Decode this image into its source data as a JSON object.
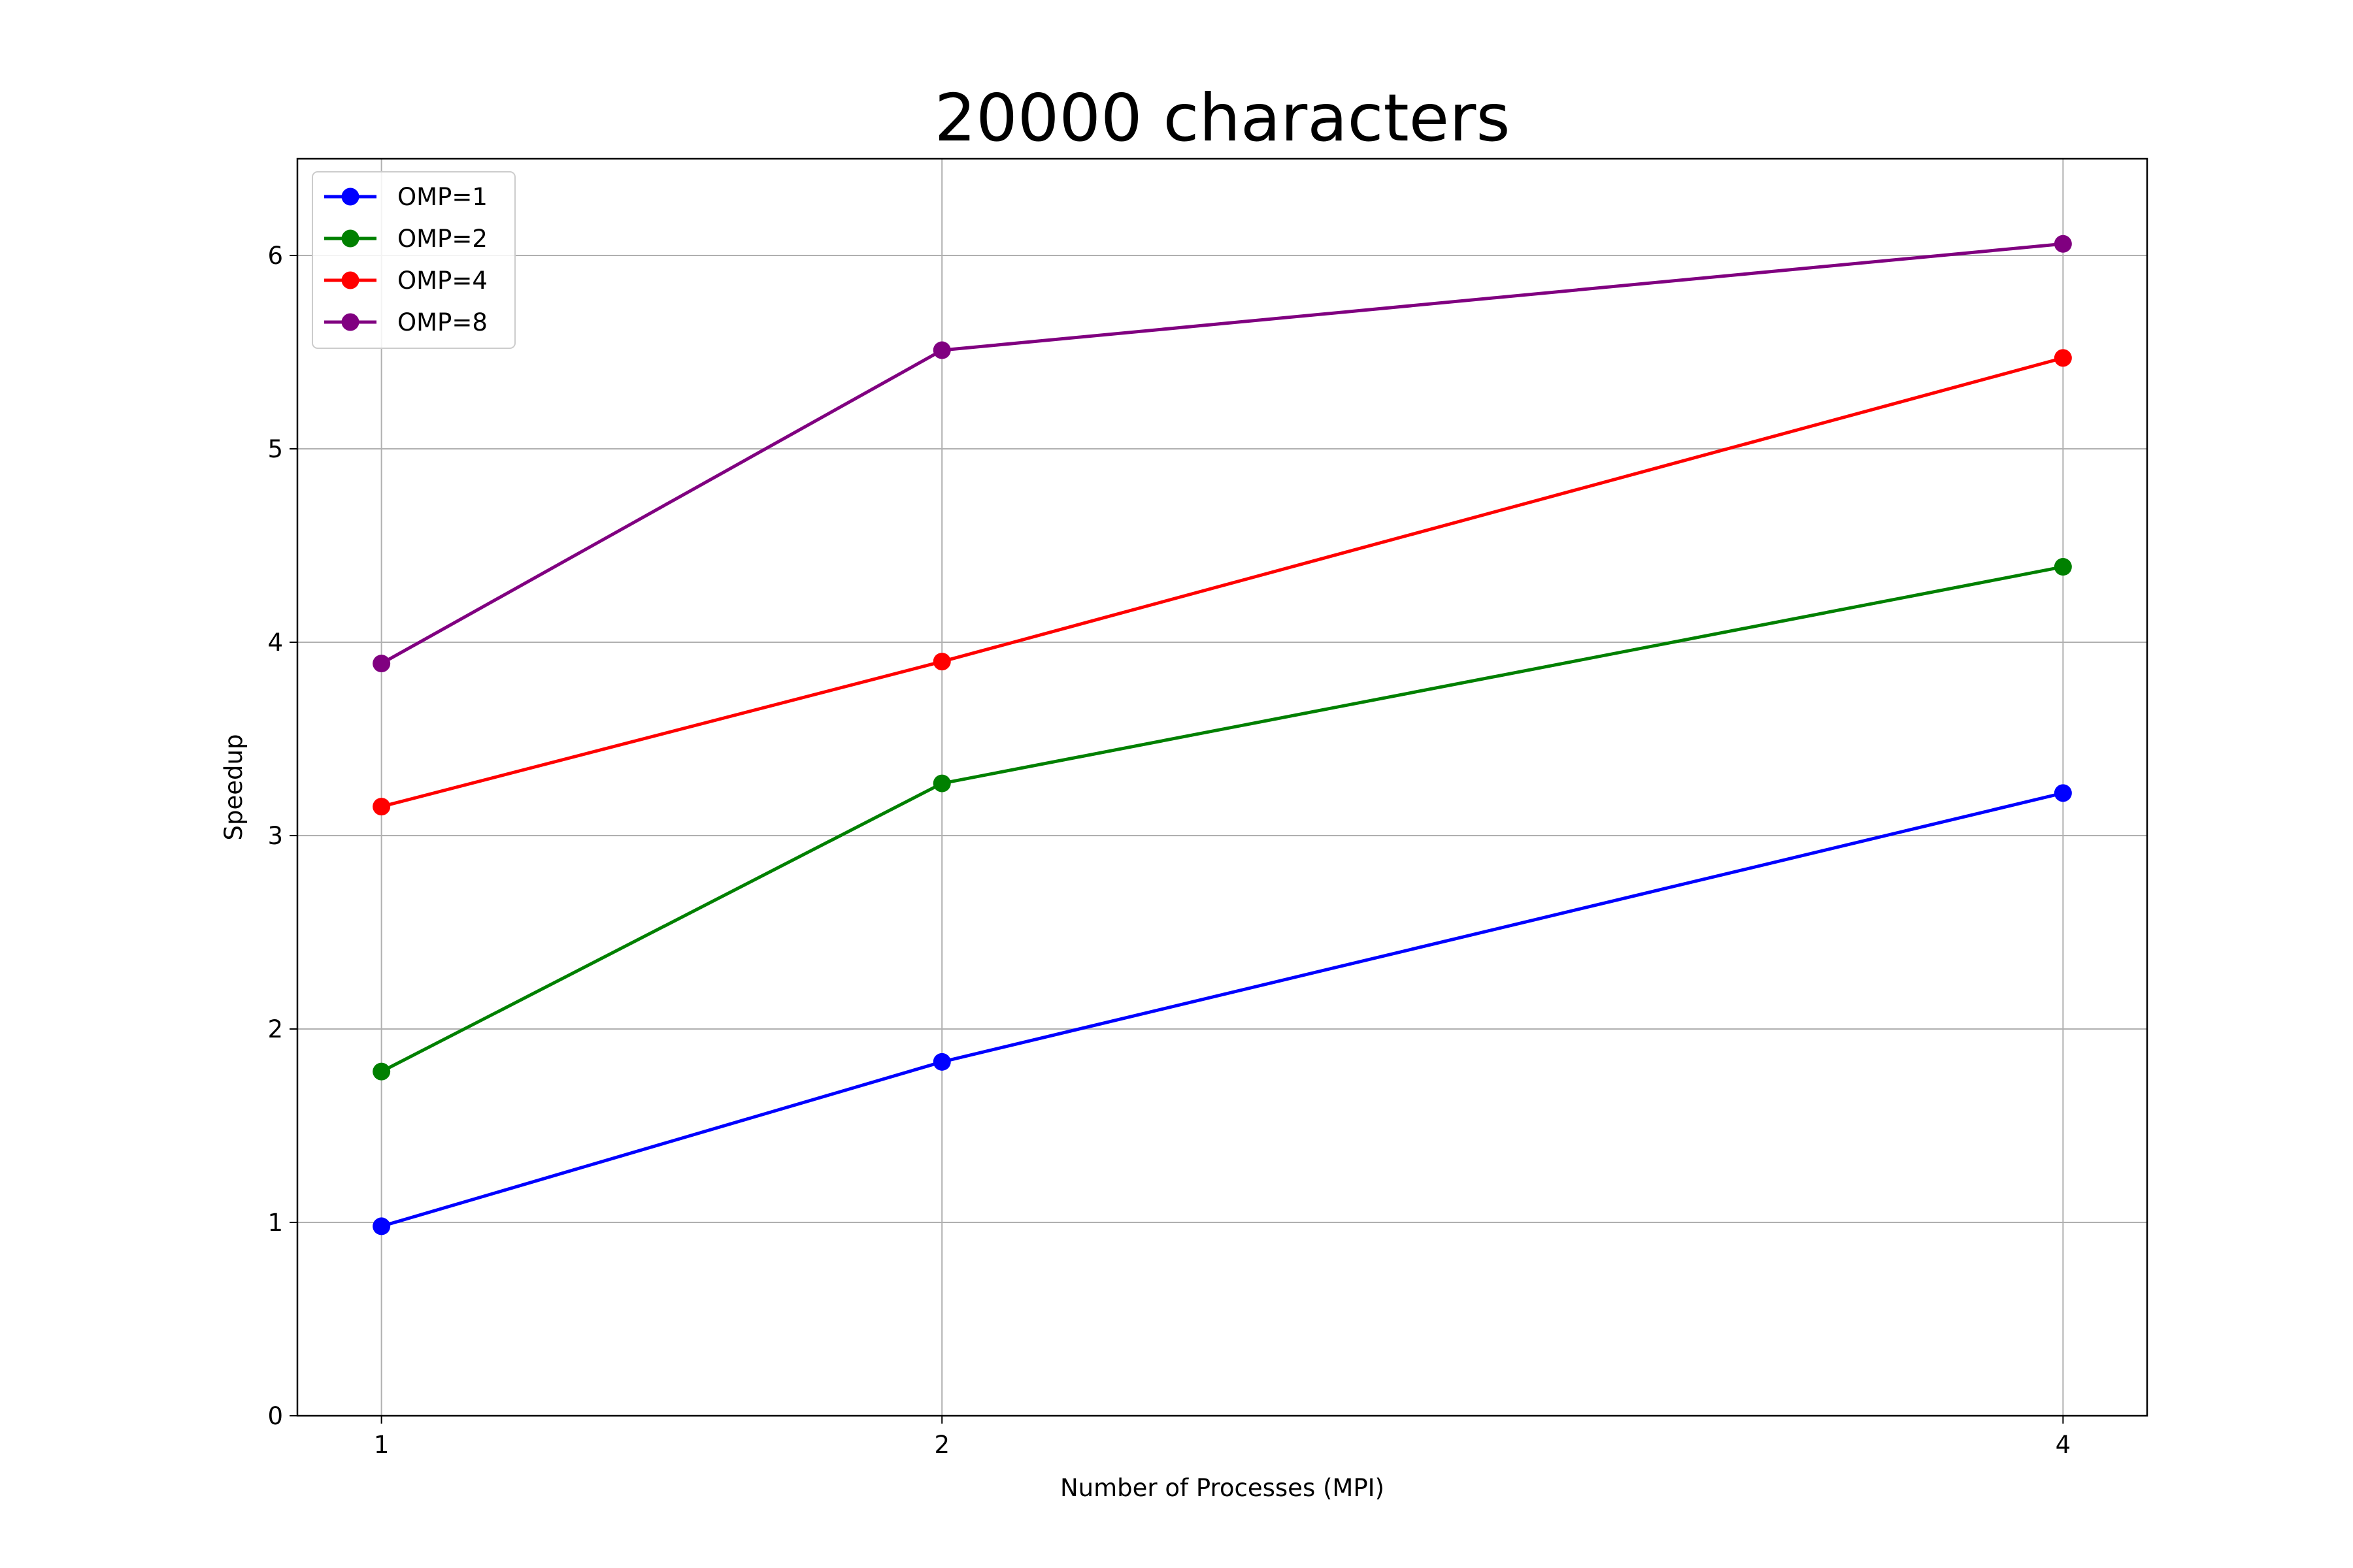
{
  "chart_data": {
    "type": "line",
    "title": "20000 characters",
    "xlabel": "Number of Processes (MPI)",
    "ylabel": "Speedup",
    "x": [
      1,
      2,
      4
    ],
    "x_tick_labels": [
      "1",
      "2",
      "4"
    ],
    "y_ticks": [
      0,
      1,
      2,
      3,
      4,
      5,
      6
    ],
    "y_tick_labels": [
      "0",
      "1",
      "2",
      "3",
      "4",
      "5",
      "6"
    ],
    "xlim": [
      0.85,
      4.15
    ],
    "ylim": [
      0,
      6.5
    ],
    "grid": true,
    "legend_position": "top-left",
    "series": [
      {
        "name": "OMP=1",
        "color": "#0000ff",
        "values": [
          0.98,
          1.83,
          3.22
        ]
      },
      {
        "name": "OMP=2",
        "color": "#008000",
        "values": [
          1.78,
          3.27,
          4.39
        ]
      },
      {
        "name": "OMP=4",
        "color": "#ff0000",
        "values": [
          3.15,
          3.9,
          5.47
        ]
      },
      {
        "name": "OMP=8",
        "color": "#800080",
        "values": [
          3.89,
          5.51,
          6.06
        ]
      }
    ]
  }
}
